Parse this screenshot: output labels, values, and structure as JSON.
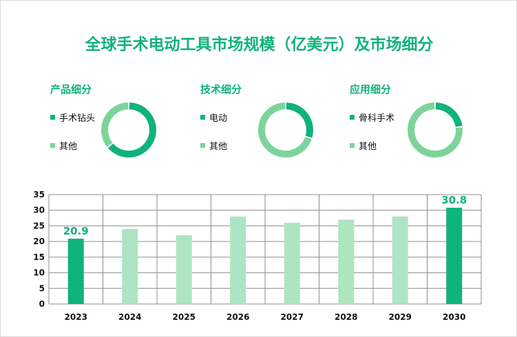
{
  "title": "全球手术电动工具市场规模（亿美元）及市场细分",
  "colors": {
    "primary": "#10b27c",
    "secondary": "#7dd49b",
    "bar_light": "#ade5c1"
  },
  "segments": [
    {
      "title": "产品细分",
      "items": [
        "手术钻头",
        "其他"
      ],
      "share_primary": 0.64
    },
    {
      "title": "技术细分",
      "items": [
        "电动",
        "其他"
      ],
      "share_primary": 0.3
    },
    {
      "title": "应用细分",
      "items": [
        "骨科手术",
        "其他"
      ],
      "share_primary": 0.23
    }
  ],
  "chart_data": {
    "type": "bar",
    "categories": [
      "2023",
      "2024",
      "2025",
      "2026",
      "2027",
      "2028",
      "2029",
      "2030"
    ],
    "values": [
      20.9,
      24,
      22,
      28,
      26,
      27,
      28,
      30.8
    ],
    "data_labels": {
      "0": "20.9",
      "7": "30.8"
    },
    "highlighted": [
      0,
      7
    ],
    "ylim": [
      0,
      35
    ],
    "yticks": [
      "0",
      "5",
      "10",
      "15",
      "20",
      "25",
      "30",
      "35"
    ],
    "grid": true,
    "title": "",
    "xlabel": "",
    "ylabel": ""
  }
}
